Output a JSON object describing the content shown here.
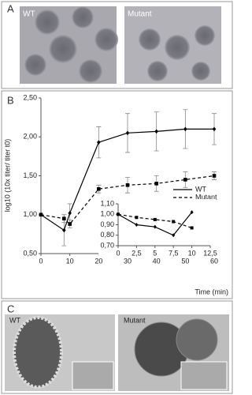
{
  "panel_labels": [
    "A",
    "B",
    "C"
  ],
  "panel_a": {
    "labels": [
      "WT",
      "Mutant"
    ]
  },
  "panel_c": {
    "labels": [
      "WT",
      "Mutant"
    ]
  },
  "chart_data": [
    {
      "type": "line",
      "y_label": "log10 (10x titer/ titer t0)",
      "x_label": "Time (min)",
      "x": [
        0,
        8,
        10,
        20,
        30,
        40,
        50,
        60
      ],
      "series": [
        {
          "name": "WT",
          "color": "#000000",
          "line_style": "solid",
          "marker": "diamond",
          "values": [
            1.0,
            0.8,
            1.02,
            1.93,
            2.05,
            2.07,
            2.1,
            2.1
          ],
          "errors": [
            0,
            0.2,
            0.12,
            0.2,
            0.25,
            0.25,
            0.25,
            0.2
          ]
        },
        {
          "name": "Mutant",
          "color": "#000000",
          "line_style": "dashed",
          "marker": "square",
          "values": [
            1.0,
            0.95,
            0.88,
            1.33,
            1.38,
            1.4,
            1.45,
            1.5
          ],
          "errors": [
            0,
            0.05,
            0.05,
            0.05,
            0.1,
            0.1,
            0.1,
            0.05
          ]
        }
      ],
      "xlim": [
        0,
        60
      ],
      "xticks": [
        0,
        10,
        20,
        30,
        40,
        50,
        60
      ],
      "ylim": [
        0.5,
        2.5
      ],
      "yticks": [
        {
          "value": 0.5,
          "label": "0,50"
        },
        {
          "value": 1.0,
          "label": "1,00"
        },
        {
          "value": 1.5,
          "label": "1,50"
        },
        {
          "value": 2.0,
          "label": "2,00"
        },
        {
          "value": 2.5,
          "label": "2,50"
        }
      ],
      "legend": "center-right"
    },
    {
      "type": "line",
      "x": [
        0,
        2.5,
        5,
        7.5,
        10
      ],
      "series": [
        {
          "color": "#000000",
          "line_style": "solid",
          "marker": "diamond",
          "values": [
            1.0,
            0.9,
            0.88,
            0.8,
            1.02
          ]
        },
        {
          "color": "#000000",
          "line_style": "dashed",
          "marker": "square",
          "values": [
            1.0,
            0.97,
            0.95,
            0.93,
            0.87
          ]
        }
      ],
      "xlim": [
        0,
        12.5
      ],
      "xticks": [
        0,
        {
          "value": 2.5,
          "label": "2,5"
        },
        5,
        {
          "value": 7.5,
          "label": "7,5"
        },
        10,
        {
          "value": 12.5,
          "label": "12,5"
        }
      ],
      "ylim": [
        0.7,
        1.1
      ],
      "yticks": [
        {
          "value": 0.7,
          "label": "0,70"
        },
        {
          "value": 0.8,
          "label": "0,80"
        },
        {
          "value": 0.9,
          "label": "0,90"
        },
        {
          "value": 1.0,
          "label": "1,00"
        },
        {
          "value": 1.1,
          "label": "1,10"
        }
      ]
    }
  ]
}
